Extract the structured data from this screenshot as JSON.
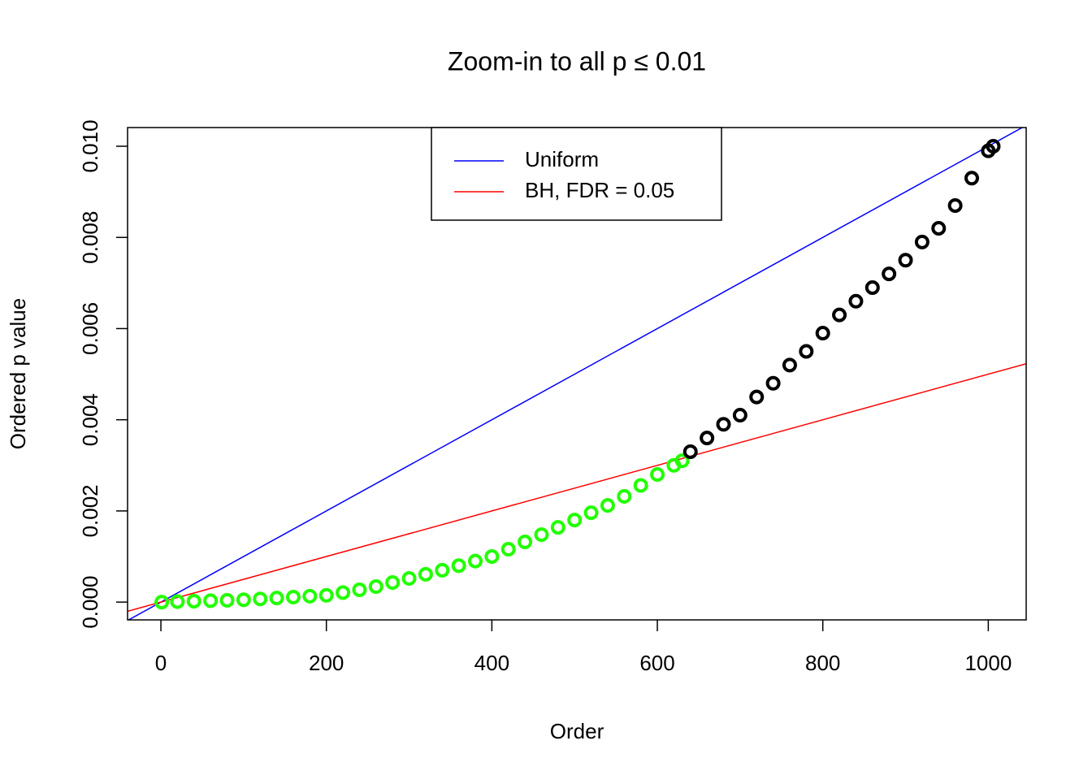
{
  "chart_data": {
    "type": "scatter",
    "title": "Zoom-in to all p ≤ 0.01",
    "xlabel": "Order",
    "ylabel": "Ordered p value",
    "xlim": [
      -40.3,
      1045.8
    ],
    "ylim": [
      -0.00039,
      0.01041
    ],
    "xticks": [
      0,
      200,
      400,
      600,
      800,
      1000
    ],
    "yticks": [
      {
        "value": 0,
        "label": "0.000"
      },
      {
        "value": 0.002,
        "label": "0.002"
      },
      {
        "value": 0.004,
        "label": "0.004"
      },
      {
        "value": 0.006,
        "label": "0.006"
      },
      {
        "value": 0.008,
        "label": "0.008"
      },
      {
        "value": 0.01,
        "label": "0.010"
      }
    ],
    "series": [
      {
        "color": "#22ff00",
        "x": [
          1,
          20,
          40,
          60,
          80,
          100,
          120,
          140,
          160,
          180,
          200,
          220,
          240,
          260,
          280,
          300,
          320,
          340,
          360,
          380,
          400,
          420,
          440,
          460,
          480,
          500,
          520,
          540,
          560,
          580,
          600,
          620,
          630
        ],
        "values": [
          0,
          1e-05,
          2e-05,
          3e-05,
          4e-05,
          5e-05,
          7e-05,
          9e-05,
          0.00011,
          0.00013,
          0.00015,
          0.00021,
          0.00027,
          0.00034,
          0.00043,
          0.00052,
          0.00061,
          0.0007,
          0.0008,
          0.0009,
          0.001,
          0.00116,
          0.00132,
          0.00148,
          0.00164,
          0.0018,
          0.00196,
          0.00212,
          0.00232,
          0.00256,
          0.0028,
          0.003,
          0.0031
        ]
      },
      {
        "color": "#000000",
        "x": [
          640,
          660,
          680,
          700,
          720,
          740,
          760,
          780,
          800,
          820,
          840,
          860,
          880,
          900,
          920,
          940,
          960,
          980,
          1000,
          1006
        ],
        "values": [
          0.0033,
          0.0036,
          0.0039,
          0.0041,
          0.0045,
          0.0048,
          0.0052,
          0.0055,
          0.0059,
          0.0063,
          0.0066,
          0.0069,
          0.0072,
          0.0075,
          0.0079,
          0.0082,
          0.0087,
          0.0093,
          0.0099,
          0.01
        ]
      }
    ],
    "lines": [
      {
        "name": "Uniform",
        "color": "#0000ff",
        "slope": 1e-05,
        "intercept": 0
      },
      {
        "name": "BH, FDR = 0.05",
        "color": "#ff0000",
        "slope": 5e-06,
        "intercept": 0
      }
    ]
  }
}
